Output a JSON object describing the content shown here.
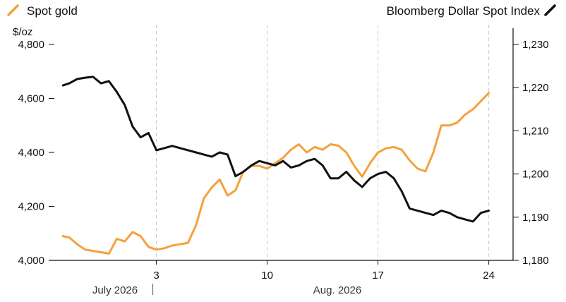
{
  "chart_data": {
    "type": "line",
    "title": "",
    "legend": {
      "left": {
        "label": "Spot gold",
        "color": "#f4a23a"
      },
      "right": {
        "label": "Bloomberg Dollar Spot Index",
        "color": "#111111"
      }
    },
    "y_left": {
      "unit": "$/oz",
      "lim": [
        4000,
        4800
      ],
      "ticks": [
        4000,
        4200,
        4400,
        4600,
        4800
      ],
      "tick_labels": [
        "4,000",
        "4,200",
        "4,400",
        "4,600",
        "4,800"
      ]
    },
    "y_right": {
      "lim": [
        1180,
        1230
      ],
      "ticks": [
        1180,
        1190,
        1200,
        1210,
        1220,
        1230
      ],
      "tick_labels": [
        "1,180",
        "1,190",
        "1,200",
        "1,210",
        "1,220",
        "1,230"
      ]
    },
    "x": {
      "lim_days": [
        -3,
        24
      ],
      "ticks": [
        3,
        10,
        17,
        24
      ],
      "tick_labels": [
        "3",
        "10",
        "17",
        "24"
      ],
      "month_labels": [
        "July 2026",
        "Aug. 2026"
      ],
      "month_divider_day": 3
    },
    "series": [
      {
        "name": "Spot gold",
        "axis": "left",
        "color": "#f4a23a",
        "x": [
          -2.9,
          -2.5,
          -2.0,
          -1.5,
          -1.0,
          -0.5,
          0.0,
          0.5,
          1.0,
          1.5,
          2.0,
          2.5,
          3.0,
          3.5,
          4.0,
          4.5,
          5.0,
          5.5,
          6.0,
          6.5,
          7.0,
          7.5,
          8.0,
          8.5,
          9.0,
          9.5,
          10.0,
          10.5,
          11.0,
          11.5,
          12.0,
          12.5,
          13.0,
          13.5,
          14.0,
          14.5,
          15.0,
          15.5,
          16.0,
          16.5,
          17.0,
          17.5,
          18.0,
          18.5,
          19.0,
          19.5,
          20.0,
          20.5,
          21.0,
          21.5,
          22.0,
          22.5,
          23.0,
          23.5,
          24.0
        ],
        "values": [
          4090,
          4085,
          4060,
          4040,
          4035,
          4030,
          4025,
          4080,
          4070,
          4105,
          4090,
          4050,
          4040,
          4045,
          4055,
          4060,
          4065,
          4130,
          4230,
          4270,
          4300,
          4240,
          4260,
          4330,
          4350,
          4350,
          4340,
          4360,
          4380,
          4410,
          4430,
          4400,
          4420,
          4410,
          4430,
          4425,
          4400,
          4350,
          4310,
          4360,
          4400,
          4415,
          4420,
          4410,
          4370,
          4340,
          4330,
          4400,
          4500,
          4500,
          4510,
          4540,
          4560,
          4590,
          4620
        ]
      },
      {
        "name": "Bloomberg Dollar Spot Index",
        "axis": "right",
        "color": "#111111",
        "x": [
          -2.9,
          -2.5,
          -2.0,
          -1.5,
          -1.0,
          -0.5,
          0.0,
          0.5,
          1.0,
          1.5,
          2.0,
          2.5,
          3.0,
          3.5,
          4.0,
          4.5,
          5.0,
          5.5,
          6.0,
          6.5,
          7.0,
          7.5,
          8.0,
          8.5,
          9.0,
          9.5,
          10.0,
          10.5,
          11.0,
          11.5,
          12.0,
          12.5,
          13.0,
          13.5,
          14.0,
          14.5,
          15.0,
          15.5,
          16.0,
          16.5,
          17.0,
          17.5,
          18.0,
          18.5,
          19.0,
          19.5,
          20.0,
          20.5,
          21.0,
          21.5,
          22.0,
          22.5,
          23.0,
          23.5,
          24.0
        ],
        "values": [
          1220.5,
          1221.0,
          1222.0,
          1222.3,
          1222.5,
          1221.0,
          1221.5,
          1219.0,
          1216.0,
          1211.0,
          1208.5,
          1209.5,
          1205.5,
          1206.0,
          1206.5,
          1206.0,
          1205.5,
          1205.0,
          1204.5,
          1204.0,
          1205.0,
          1204.5,
          1199.5,
          1200.5,
          1202.0,
          1203.0,
          1202.5,
          1202.0,
          1203.0,
          1201.5,
          1202.0,
          1203.0,
          1203.5,
          1202.0,
          1199.0,
          1199.0,
          1200.5,
          1198.5,
          1197.0,
          1199.0,
          1200.0,
          1200.5,
          1199.0,
          1196.0,
          1192.0,
          1191.5,
          1191.0,
          1190.5,
          1191.5,
          1191.0,
          1190.0,
          1189.5,
          1189.0,
          1191.0,
          1191.5
        ]
      }
    ]
  }
}
